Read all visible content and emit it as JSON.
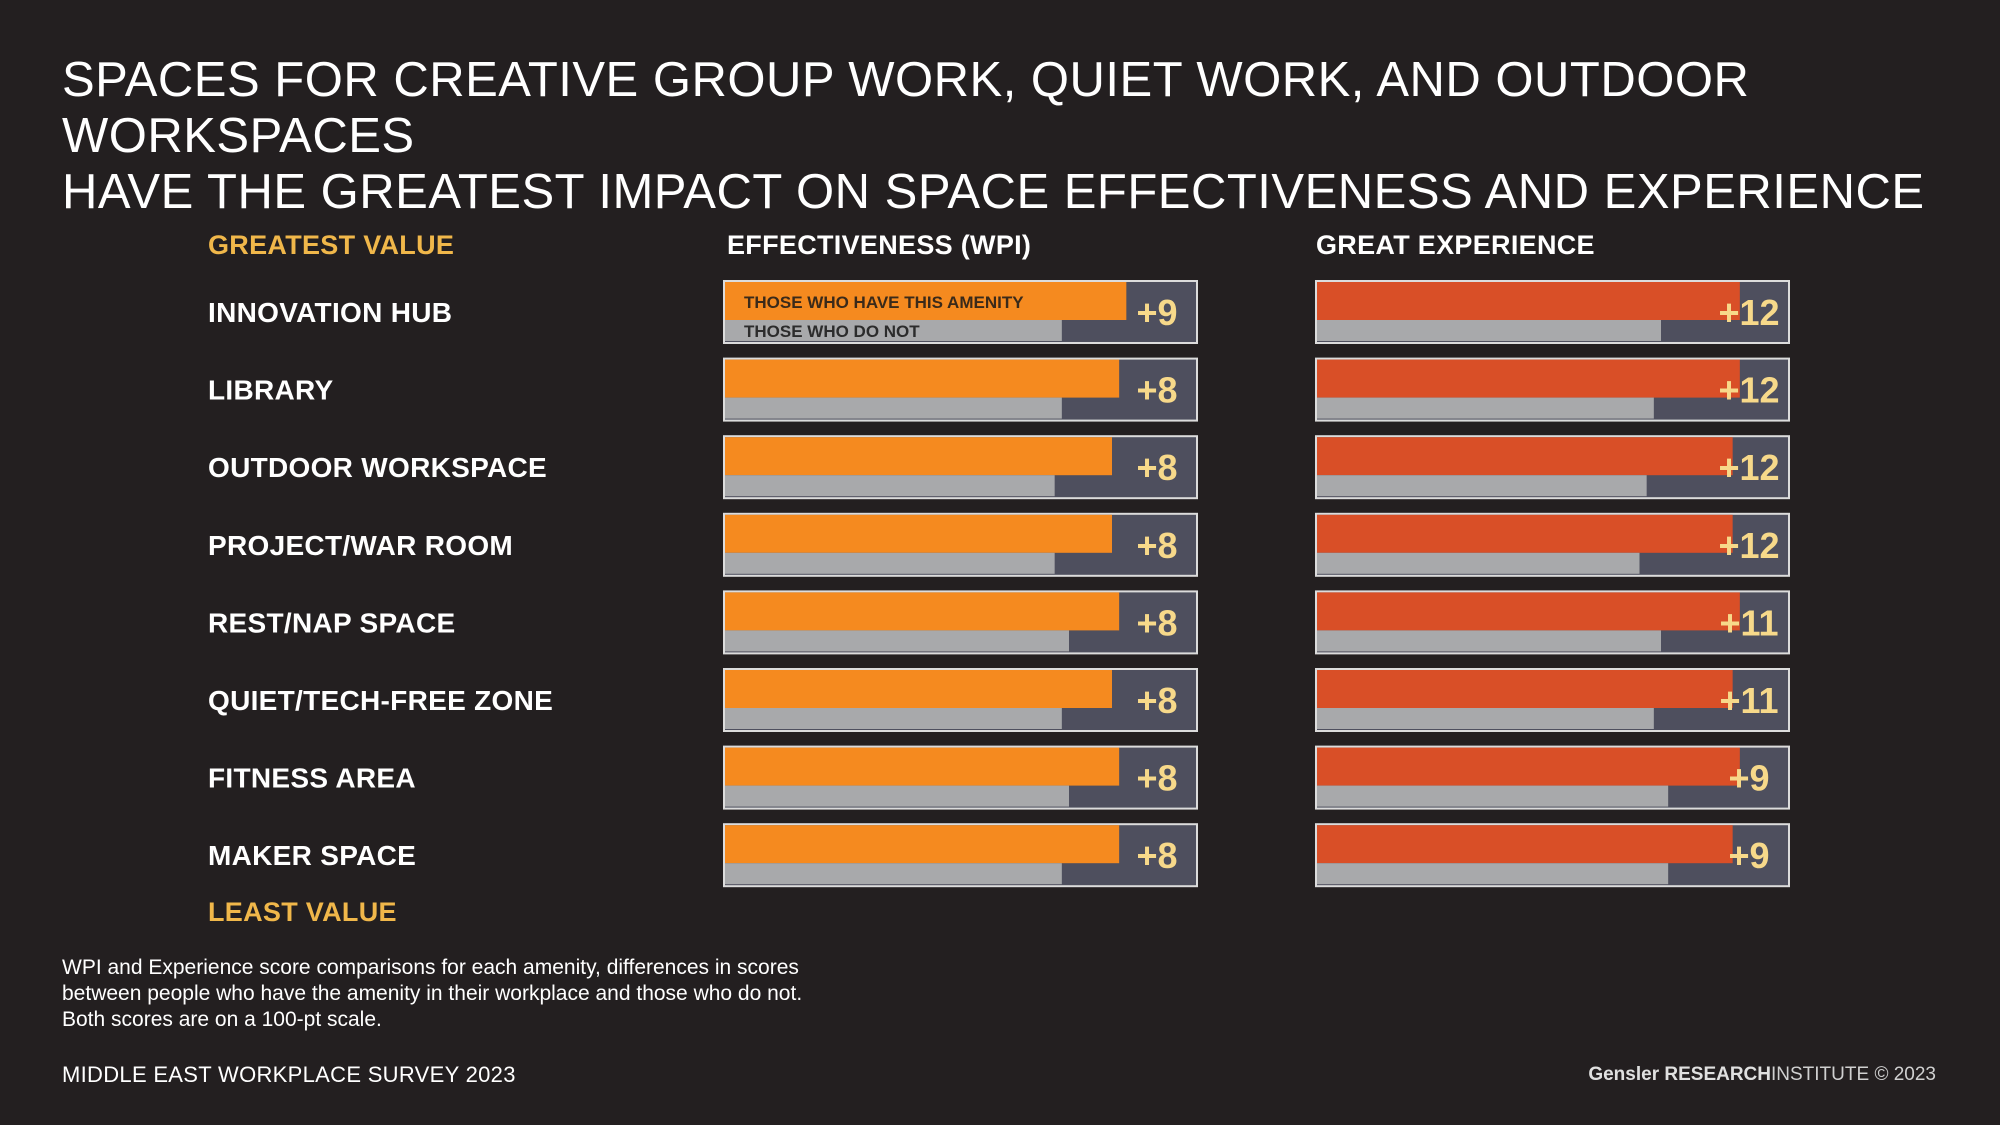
{
  "title": {
    "line1": "SPACES FOR CREATIVE GROUP WORK, QUIET WORK, AND OUTDOOR WORKSPACES",
    "line2": "HAVE THE GREATEST IMPACT ON SPACE EFFECTIVENESS AND EXPERIENCE"
  },
  "labels": {
    "greatest": "GREATEST VALUE",
    "least": "LEAST VALUE"
  },
  "chart_data": {
    "type": "bar",
    "categories": [
      "INNOVATION HUB",
      "LIBRARY",
      "OUTDOOR WORKSPACE",
      "PROJECT/WAR ROOM",
      "REST/NAP SPACE",
      "QUIET/TECH-FREE ZONE",
      "FITNESS AREA",
      "MAKER SPACE"
    ],
    "legend": {
      "have": "THOSE WHO HAVE THIS AMENITY",
      "not": "THOSE WHO DO NOT"
    },
    "panels": [
      {
        "title": "EFFECTIVENESS (WPI)",
        "scale": [
          0,
          100
        ],
        "series": [
          {
            "name": "THOSE WHO HAVE THIS AMENITY",
            "color": "#f58a1f",
            "values": [
              76,
              75,
              74,
              74,
              75,
              74,
              75,
              75
            ]
          },
          {
            "name": "THOSE WHO DO NOT",
            "color": "#a8a9ab",
            "values": [
              67,
              67,
              66,
              66,
              68,
              67,
              68,
              67
            ]
          }
        ],
        "differences": [
          "+9",
          "+8",
          "+8",
          "+8",
          "+8",
          "+8",
          "+8",
          "+8"
        ]
      },
      {
        "title": "GREAT EXPERIENCE",
        "scale": [
          0,
          100
        ],
        "series": [
          {
            "name": "THOSE WHO HAVE THIS AMENITY",
            "color": "#d94f27",
            "values": [
              79,
              79,
              78,
              78,
              79,
              78,
              79,
              78
            ]
          },
          {
            "name": "THOSE WHO DO NOT",
            "color": "#a8a9ab",
            "values": [
              68,
              67,
              66,
              65,
              68,
              67,
              69,
              69
            ]
          }
        ],
        "differences": [
          "+12",
          "+12",
          "+12",
          "+12",
          "+11",
          "+11",
          "+9",
          "+9"
        ]
      }
    ],
    "colors": {
      "box_bg": "#4e4f5e",
      "box_border": "#dcdcdc",
      "difference_text": "#f7d98a"
    }
  },
  "footnote": "WPI and Experience score comparisons for each amenity, differences in scores between people who have the amenity in their workplace and those who do not. Both scores are on a 100-pt scale.",
  "survey": "MIDDLE EAST WORKPLACE SURVEY 2023",
  "brand": {
    "name": "Gensler",
    "research": "RESEARCH",
    "institute": "INSTITUTE",
    "copyright": "© 2023"
  }
}
